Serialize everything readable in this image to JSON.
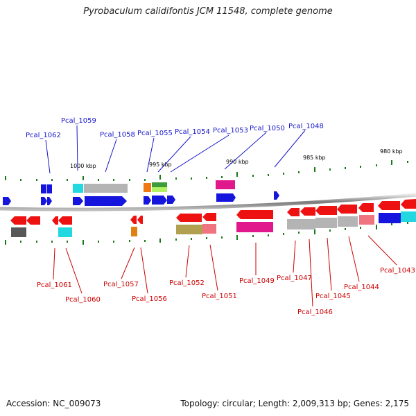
{
  "title": "Pyrobaculum calidifontis JCM 11548, complete genome",
  "accession": "Accession: NC_009073",
  "topology": "Topology: circular; Length: 2,009,313 bp; Genes: 2,175",
  "colors": {
    "label_top": "#1414c8",
    "label_bottom": "#cc0000",
    "backbone": "#8c8c8c",
    "tick": "#1a7a1a"
  },
  "scale_marks": [
    "1000 kbp",
    "995 kbp",
    "990 kbp",
    "985 kbp",
    "980 kbp"
  ],
  "top_labels": [
    "Pcal_1062",
    "Pcal_1059",
    "Pcal_1058",
    "Pcal_1055",
    "Pcal_1054",
    "Pcal_1053",
    "Pcal_1050",
    "Pcal_1048"
  ],
  "bottom_labels": [
    "Pcal_1061",
    "Pcal_1060",
    "Pcal_1057",
    "Pcal_1056",
    "Pcal_1052",
    "Pcal_1051",
    "Pcal_1049",
    "Pcal_1047",
    "Pcal_1046",
    "Pcal_1045",
    "Pcal_1044",
    "Pcal_1043"
  ]
}
